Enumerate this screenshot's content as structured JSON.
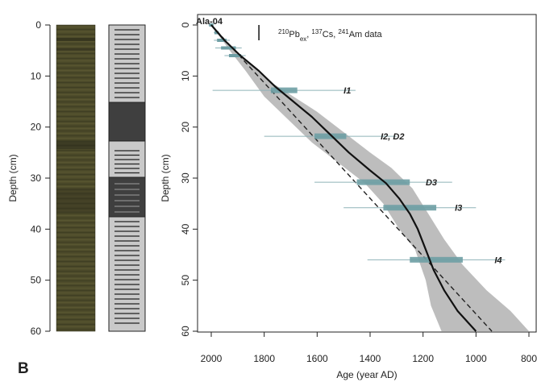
{
  "panel_label": "B",
  "core_label": "Ala-04",
  "annotation": {
    "parts": [
      {
        "text": "210",
        "sup": true
      },
      {
        "text": "Pb",
        "sup": false
      },
      {
        "text": "ex",
        "sub": true
      },
      {
        "text": ", ",
        "sup": false
      },
      {
        "text": "137",
        "sup": true
      },
      {
        "text": "Cs, ",
        "sup": false
      },
      {
        "text": "241",
        "sup": true
      },
      {
        "text": "Am data",
        "sup": false
      }
    ]
  },
  "left_axis": {
    "label": "Depth (cm)",
    "ticks": [
      "0",
      "10",
      "20",
      "30",
      "40",
      "50",
      "60"
    ]
  },
  "colors": {
    "envelope": "#bdbdbd",
    "errorbar_thick": "#6e9ea4",
    "errorbar_thin": "#8fb3b8",
    "model_line": "#111111",
    "core_photo": "#4a4a26",
    "lithology_light": "#c8c8c8",
    "lithology_dark": "#3f3f3f"
  },
  "chart_data": {
    "type": "line",
    "title": "",
    "xlabel": "Age (year AD)",
    "ylabel": "Depth (cm)",
    "xlim": [
      2020,
      800
    ],
    "ylim": [
      -2,
      60
    ],
    "x_ticks": [
      "2000",
      "1800",
      "1600",
      "1400",
      "1200",
      "1000",
      "800"
    ],
    "y_ticks": [
      "0",
      "10",
      "20",
      "30",
      "40",
      "50",
      "60"
    ],
    "x_reversed": true,
    "y_reversed": true,
    "grid": false,
    "age_model": [
      {
        "age": 2000,
        "depth": 0
      },
      {
        "age": 1950,
        "depth": 3
      },
      {
        "age": 1890,
        "depth": 6
      },
      {
        "age": 1820,
        "depth": 9
      },
      {
        "age": 1760,
        "depth": 12
      },
      {
        "age": 1690,
        "depth": 15
      },
      {
        "age": 1620,
        "depth": 18
      },
      {
        "age": 1550,
        "depth": 21.5
      },
      {
        "age": 1480,
        "depth": 25
      },
      {
        "age": 1400,
        "depth": 28.5
      },
      {
        "age": 1340,
        "depth": 31
      },
      {
        "age": 1290,
        "depth": 34
      },
      {
        "age": 1250,
        "depth": 37
      },
      {
        "age": 1220,
        "depth": 40
      },
      {
        "age": 1190,
        "depth": 44
      },
      {
        "age": 1160,
        "depth": 48
      },
      {
        "age": 1120,
        "depth": 52
      },
      {
        "age": 1070,
        "depth": 56
      },
      {
        "age": 1000,
        "depth": 60
      }
    ],
    "envelope_upper": [
      {
        "age": 2000,
        "depth": 0
      },
      {
        "age": 1895,
        "depth": 6
      },
      {
        "age": 1780,
        "depth": 11
      },
      {
        "age": 1690,
        "depth": 14
      },
      {
        "age": 1600,
        "depth": 17
      },
      {
        "age": 1500,
        "depth": 21
      },
      {
        "age": 1400,
        "depth": 25
      },
      {
        "age": 1320,
        "depth": 28
      },
      {
        "age": 1240,
        "depth": 32
      },
      {
        "age": 1180,
        "depth": 37
      },
      {
        "age": 1120,
        "depth": 42
      },
      {
        "age": 1050,
        "depth": 47
      },
      {
        "age": 960,
        "depth": 52
      },
      {
        "age": 870,
        "depth": 56
      },
      {
        "age": 800,
        "depth": 60
      }
    ],
    "envelope_lower": [
      {
        "age": 1130,
        "depth": 60
      },
      {
        "age": 1170,
        "depth": 55
      },
      {
        "age": 1190,
        "depth": 50
      },
      {
        "age": 1230,
        "depth": 44
      },
      {
        "age": 1290,
        "depth": 40
      },
      {
        "age": 1350,
        "depth": 35
      },
      {
        "age": 1420,
        "depth": 31
      },
      {
        "age": 1520,
        "depth": 27
      },
      {
        "age": 1620,
        "depth": 23
      },
      {
        "age": 1720,
        "depth": 18
      },
      {
        "age": 1800,
        "depth": 14
      },
      {
        "age": 1870,
        "depth": 9
      },
      {
        "age": 1930,
        "depth": 5
      },
      {
        "age": 2000,
        "depth": 0
      }
    ],
    "linear_fit": [
      {
        "age": 2000,
        "depth": 0
      },
      {
        "age": 940,
        "depth": 60
      }
    ],
    "radiometric_points": [
      {
        "age": 2000,
        "depth": 0,
        "err": 5
      },
      {
        "age": 1980,
        "depth": 1.5,
        "err": 5
      },
      {
        "age": 1960,
        "depth": 3,
        "err": 15
      },
      {
        "age": 1935,
        "depth": 4.5,
        "err": 25
      },
      {
        "age": 1910,
        "depth": 6,
        "err": 20
      }
    ],
    "radiometric_bar": {
      "depth_from": 0,
      "depth_to": 2,
      "age": 1820
    },
    "events": [
      {
        "label": "I1",
        "age": 1725,
        "depth": 12.8,
        "err1": 50,
        "err2": 270
      },
      {
        "label": "I2, D2",
        "age": 1550,
        "depth": 21.8,
        "err1": 60,
        "err2": 250
      },
      {
        "label": "D3",
        "age": 1350,
        "depth": 30.8,
        "err1": 100,
        "err2": 260
      },
      {
        "label": "I3",
        "age": 1250,
        "depth": 35.8,
        "err1": 100,
        "err2": 250
      },
      {
        "label": "I4",
        "age": 1150,
        "depth": 46.0,
        "err1": 100,
        "err2": 260
      }
    ]
  }
}
